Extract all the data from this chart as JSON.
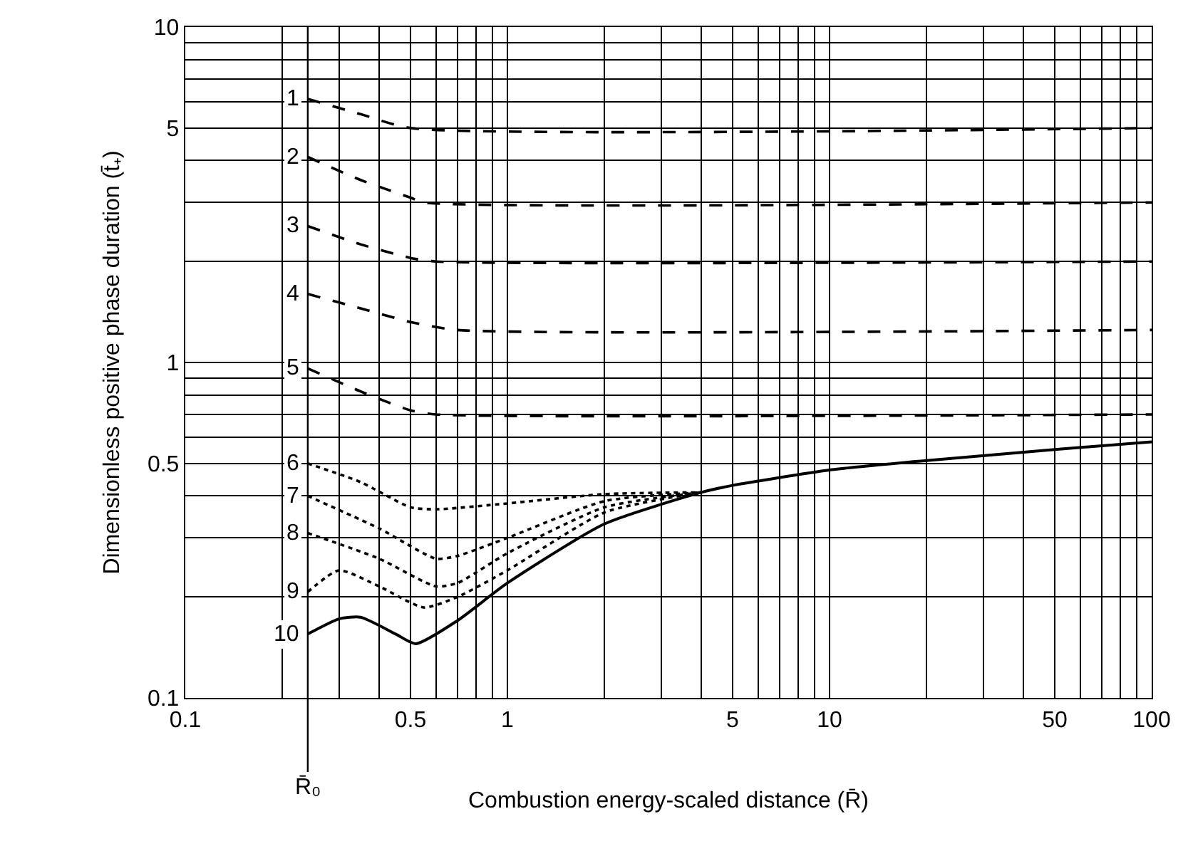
{
  "chart_data": {
    "type": "line",
    "xlabel": "Combustion energy-scaled distance (R̄)",
    "ylabel": "Dimensionless positive phase duration (t̄₊)",
    "log": "xy",
    "grid": true,
    "legend": false,
    "marker": "none",
    "xlim": [
      0.1,
      100
    ],
    "ylim": [
      0.1,
      10
    ],
    "xticks": [
      0.1,
      {
        "value": 0.2,
        "label": null
      },
      {
        "value": 0.3,
        "label": null
      },
      {
        "value": 0.4,
        "label": null
      },
      0.5,
      {
        "value": 0.6,
        "label": null
      },
      {
        "value": 0.7,
        "label": null
      },
      {
        "value": 0.8,
        "label": null
      },
      {
        "value": 0.9,
        "label": null
      },
      1,
      {
        "value": 2,
        "label": null
      },
      {
        "value": 3,
        "label": null
      },
      {
        "value": 4,
        "label": null
      },
      5,
      {
        "value": 6,
        "label": null
      },
      {
        "value": 7,
        "label": null
      },
      {
        "value": 8,
        "label": null
      },
      {
        "value": 9,
        "label": null
      },
      10,
      {
        "value": 20,
        "label": null
      },
      {
        "value": 30,
        "label": null
      },
      {
        "value": 40,
        "label": null
      },
      50,
      {
        "value": 60,
        "label": null
      },
      {
        "value": 70,
        "label": null
      },
      {
        "value": 80,
        "label": null
      },
      {
        "value": 90,
        "label": null
      },
      100
    ],
    "yticks": [
      0.1,
      {
        "value": 0.2,
        "label": null
      },
      {
        "value": 0.3,
        "label": null
      },
      {
        "value": 0.4,
        "label": null
      },
      0.5,
      {
        "value": 0.6,
        "label": null
      },
      {
        "value": 0.7,
        "label": null
      },
      {
        "value": 0.8,
        "label": null
      },
      {
        "value": 0.9,
        "label": null
      },
      1,
      {
        "value": 2,
        "label": null
      },
      {
        "value": 3,
        "label": null
      },
      {
        "value": 4,
        "label": null
      },
      5,
      {
        "value": 6,
        "label": null
      },
      {
        "value": 7,
        "label": null
      },
      {
        "value": 8,
        "label": null
      },
      {
        "value": 9,
        "label": null
      },
      10
    ],
    "ref_lines": [
      {
        "axis": "x",
        "value": 0.24,
        "label": "R̄₀",
        "color": "#000000"
      }
    ],
    "series": [
      {
        "name": "1",
        "color": "#000000",
        "line_style": "dashed",
        "x": [
          0.24,
          0.35,
          0.5,
          100
        ],
        "values": [
          6.1,
          5.5,
          5,
          5
        ]
      },
      {
        "name": "2",
        "color": "#000000",
        "line_style": "dashed",
        "x": [
          0.24,
          0.35,
          0.5,
          0.55,
          100
        ],
        "values": [
          4.1,
          3.5,
          3.1,
          3,
          3
        ]
      },
      {
        "name": "3",
        "color": "#000000",
        "line_style": "dashed",
        "x": [
          0.24,
          0.35,
          0.5,
          0.6,
          100
        ],
        "values": [
          2.55,
          2.25,
          2.05,
          2,
          2
        ]
      },
      {
        "name": "4",
        "color": "#000000",
        "line_style": "dashed",
        "x": [
          0.24,
          0.35,
          0.5,
          0.7,
          100
        ],
        "values": [
          1.6,
          1.45,
          1.32,
          1.25,
          1.25
        ]
      },
      {
        "name": "5",
        "color": "#000000",
        "line_style": "dashed",
        "x": [
          0.24,
          0.35,
          0.5,
          0.6,
          100
        ],
        "values": [
          0.96,
          0.82,
          0.72,
          0.7,
          0.7
        ]
      },
      {
        "name": "6",
        "color": "#000000",
        "line_style": "dotted",
        "x": [
          0.24,
          0.35,
          0.5,
          0.6,
          1,
          2,
          4
        ],
        "values": [
          0.5,
          0.44,
          0.37,
          0.365,
          0.38,
          0.405,
          0.41
        ]
      },
      {
        "name": "7",
        "color": "#000000",
        "line_style": "dotted",
        "x": [
          0.24,
          0.4,
          0.6,
          0.7,
          1,
          2,
          4
        ],
        "values": [
          0.4,
          0.32,
          0.26,
          0.265,
          0.3,
          0.386,
          0.41
        ]
      },
      {
        "name": "8",
        "color": "#000000",
        "line_style": "dotted",
        "x": [
          0.24,
          0.4,
          0.6,
          0.7,
          1,
          2,
          4
        ],
        "values": [
          0.31,
          0.26,
          0.215,
          0.22,
          0.27,
          0.37,
          0.41
        ]
      },
      {
        "name": "9",
        "color": "#000000",
        "line_style": "dotted",
        "x": [
          0.24,
          0.3,
          0.4,
          0.55,
          0.7,
          1,
          2,
          4
        ],
        "values": [
          0.207,
          0.24,
          0.215,
          0.186,
          0.2,
          0.24,
          0.357,
          0.41
        ]
      },
      {
        "name": "10",
        "color": "#000000",
        "line_style": "solid",
        "x": [
          0.24,
          0.3,
          0.35,
          0.45,
          0.52,
          0.7,
          1,
          2,
          4,
          5,
          10,
          20,
          50,
          100
        ],
        "values": [
          0.155,
          0.172,
          0.174,
          0.155,
          0.145,
          0.17,
          0.22,
          0.33,
          0.41,
          0.43,
          0.478,
          0.51,
          0.55,
          0.58
        ]
      }
    ]
  }
}
